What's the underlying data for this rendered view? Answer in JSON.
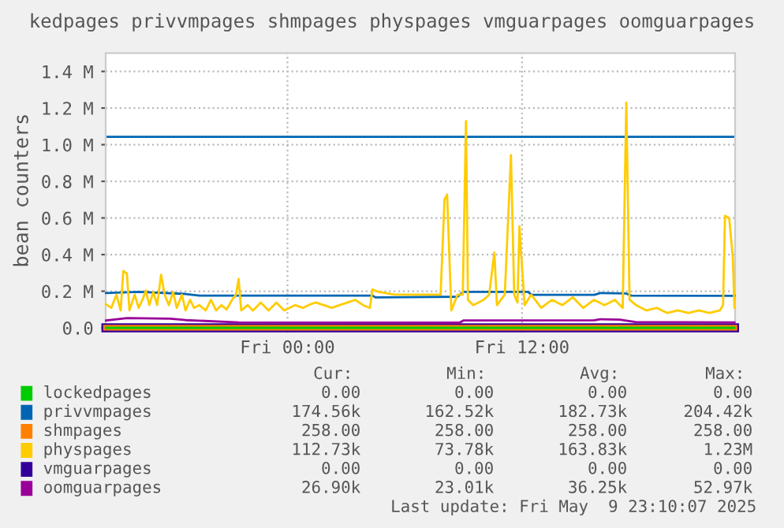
{
  "chart_data": {
    "type": "line",
    "title": "kedpages privvmpages shmpages physpages vmguarpages oomguarpages",
    "ylabel": "bean counters",
    "xlim": [
      "2025-05-08T14:42",
      "2025-05-09T22:54"
    ],
    "xticks": [
      {
        "value": "2025-05-09T00:00",
        "label": "Fri 00:00"
      },
      {
        "value": "2025-05-09T12:00",
        "label": "Fri 12:00"
      }
    ],
    "ylim": [
      0,
      1.5
    ],
    "yticks": [
      {
        "value": 0,
        "label": "0.0"
      },
      {
        "value": 0.2,
        "label": "0.2 M"
      },
      {
        "value": 0.4,
        "label": "0.4 M"
      },
      {
        "value": 0.6,
        "label": "0.6 M"
      },
      {
        "value": 0.8,
        "label": "0.8 M"
      },
      {
        "value": 1.0,
        "label": "1.0 M"
      },
      {
        "value": 1.2,
        "label": "1.2 M"
      },
      {
        "value": 1.4,
        "label": "1.4 M"
      }
    ],
    "grid": true,
    "legend": "bottom",
    "ref_lines": [
      {
        "axis": "y",
        "value": 1.043,
        "label": null,
        "color": "#0066b3"
      }
    ],
    "series": [
      {
        "name": "lockedpages",
        "color": "#00cc00",
        "x": [
          "2025-05-08T14:43",
          "2025-05-09T22:52"
        ],
        "values": [
          0,
          0
        ]
      },
      {
        "name": "privvmpages",
        "color": "#0066b3",
        "x": [
          "2025-05-08T14:43",
          "2025-05-08T16:24",
          "2025-05-08T18:48",
          "2025-05-08T19:30",
          "2025-05-09T04:21",
          "2025-05-09T04:30",
          "2025-05-09T08:42",
          "2025-05-09T09:00",
          "2025-05-09T12:18",
          "2025-05-09T12:30",
          "2025-05-09T15:42",
          "2025-05-09T16:00",
          "2025-05-09T17:18",
          "2025-05-09T17:36",
          "2025-05-09T22:52"
        ],
        "values": [
          0.19,
          0.196,
          0.185,
          0.176,
          0.176,
          0.166,
          0.17,
          0.196,
          0.196,
          0.18,
          0.18,
          0.19,
          0.188,
          0.176,
          0.175
        ]
      },
      {
        "name": "shmpages",
        "color": "#ff8000",
        "x": [
          "2025-05-08T14:43",
          "2025-05-09T22:52"
        ],
        "values": [
          0.000258,
          0.000258
        ]
      },
      {
        "name": "physpages",
        "color": "#ffcc00",
        "x": [
          "2025-05-08T14:43",
          "2025-05-08T14:59",
          "2025-05-08T15:15",
          "2025-05-08T15:28",
          "2025-05-08T15:36",
          "2025-05-08T15:47",
          "2025-05-08T15:55",
          "2025-05-08T16:11",
          "2025-05-08T16:23",
          "2025-05-08T16:35",
          "2025-05-08T16:45",
          "2025-05-08T16:56",
          "2025-05-08T17:08",
          "2025-05-08T17:20",
          "2025-05-08T17:32",
          "2025-05-08T17:43",
          "2025-05-08T17:56",
          "2025-05-08T18:09",
          "2025-05-08T18:20",
          "2025-05-08T18:36",
          "2025-05-08T18:47",
          "2025-05-08T19:01",
          "2025-05-08T19:13",
          "2025-05-08T19:29",
          "2025-05-08T19:49",
          "2025-05-08T20:05",
          "2025-05-08T20:21",
          "2025-05-08T20:37",
          "2025-05-08T20:53",
          "2025-05-08T21:10",
          "2025-05-08T21:22",
          "2025-05-08T21:30",
          "2025-05-08T21:38",
          "2025-05-08T21:58",
          "2025-05-08T22:14",
          "2025-05-08T22:38",
          "2025-05-08T23:02",
          "2025-05-08T23:26",
          "2025-05-08T23:50",
          "2025-05-09T00:23",
          "2025-05-09T00:47",
          "2025-05-09T01:11",
          "2025-05-09T01:27",
          "2025-05-09T01:51",
          "2025-05-09T02:16",
          "2025-05-09T02:40",
          "2025-05-09T03:04",
          "2025-05-09T03:28",
          "2025-05-09T03:52",
          "2025-05-09T04:13",
          "2025-05-09T04:21",
          "2025-05-09T04:40",
          "2025-05-09T05:29",
          "2025-05-09T06:17",
          "2025-05-09T07:22",
          "2025-05-09T07:50",
          "2025-05-09T08:02",
          "2025-05-09T08:10",
          "2025-05-09T08:23",
          "2025-05-09T08:42",
          "2025-05-09T08:58",
          "2025-05-09T09:08",
          "2025-05-09T09:14",
          "2025-05-09T09:30",
          "2025-05-09T10:02",
          "2025-05-09T10:19",
          "2025-05-09T10:35",
          "2025-05-09T10:43",
          "2025-05-09T11:07",
          "2025-05-09T11:26",
          "2025-05-09T11:36",
          "2025-05-09T11:46",
          "2025-05-09T11:52",
          "2025-05-09T11:58",
          "2025-05-09T12:08",
          "2025-05-09T12:28",
          "2025-05-09T12:59",
          "2025-05-09T13:32",
          "2025-05-09T14:04",
          "2025-05-09T14:36",
          "2025-05-09T15:08",
          "2025-05-09T15:41",
          "2025-05-09T16:13",
          "2025-05-09T16:45",
          "2025-05-09T17:09",
          "2025-05-09T17:20",
          "2025-05-09T17:30",
          "2025-05-09T17:50",
          "2025-05-09T18:22",
          "2025-05-09T18:54",
          "2025-05-09T19:26",
          "2025-05-09T19:58",
          "2025-05-09T20:31",
          "2025-05-09T21:03",
          "2025-05-09T21:35",
          "2025-05-09T22:07",
          "2025-05-09T22:17",
          "2025-05-09T22:23",
          "2025-05-09T22:36",
          "2025-05-09T22:47",
          "2025-05-09T22:52"
        ],
        "values": [
          0.129,
          0.109,
          0.181,
          0.095,
          0.31,
          0.297,
          0.095,
          0.181,
          0.109,
          0.153,
          0.204,
          0.124,
          0.196,
          0.124,
          0.29,
          0.181,
          0.124,
          0.196,
          0.109,
          0.181,
          0.095,
          0.153,
          0.109,
          0.124,
          0.095,
          0.153,
          0.095,
          0.124,
          0.1,
          0.153,
          0.181,
          0.267,
          0.095,
          0.124,
          0.095,
          0.138,
          0.095,
          0.138,
          0.095,
          0.124,
          0.109,
          0.129,
          0.138,
          0.124,
          0.109,
          0.124,
          0.138,
          0.153,
          0.124,
          0.109,
          0.21,
          0.196,
          0.181,
          0.181,
          0.181,
          0.181,
          0.7,
          0.728,
          0.095,
          0.181,
          0.181,
          1.129,
          0.153,
          0.124,
          0.153,
          0.181,
          0.411,
          0.124,
          0.181,
          0.943,
          0.181,
          0.138,
          0.555,
          0.383,
          0.124,
          0.181,
          0.109,
          0.153,
          0.124,
          0.167,
          0.109,
          0.153,
          0.124,
          0.153,
          0.109,
          1.23,
          0.153,
          0.124,
          0.095,
          0.109,
          0.081,
          0.095,
          0.081,
          0.095,
          0.081,
          0.095,
          0.124,
          0.612,
          0.598,
          0.383,
          0.109
        ]
      },
      {
        "name": "vmguarpages",
        "color": "#330099",
        "x": [
          "2025-05-08T14:43",
          "2025-05-09T22:52"
        ],
        "values": [
          0,
          0
        ]
      },
      {
        "name": "oomguarpages",
        "color": "#990099",
        "x": [
          "2025-05-08T14:43",
          "2025-05-08T15:48",
          "2025-05-08T18:00",
          "2025-05-08T18:48",
          "2025-05-08T21:30",
          "2025-05-09T08:48",
          "2025-05-09T09:00",
          "2025-05-09T15:42",
          "2025-05-09T16:00",
          "2025-05-09T17:00",
          "2025-05-09T17:48",
          "2025-05-09T22:52"
        ],
        "values": [
          0.04,
          0.053,
          0.05,
          0.042,
          0.03,
          0.028,
          0.04,
          0.041,
          0.047,
          0.045,
          0.032,
          0.03
        ]
      }
    ],
    "annotations": [
      "Cur:",
      "Min:",
      "Avg:",
      "Max:",
      "0.00",
      "0.00",
      "0.00",
      "0.00",
      "174.56k",
      "162.52k",
      "182.73k",
      "204.42k",
      "258.00",
      "258.00",
      "258.00",
      "258.00",
      "112.73k",
      "73.78k",
      "163.83k",
      "1.23M",
      "0.00",
      "0.00",
      "0.00",
      "0.00",
      "26.90k",
      "23.01k",
      "36.25k",
      "52.97k",
      "Last update: Fri May  9 23:10:07 2025"
    ]
  }
}
